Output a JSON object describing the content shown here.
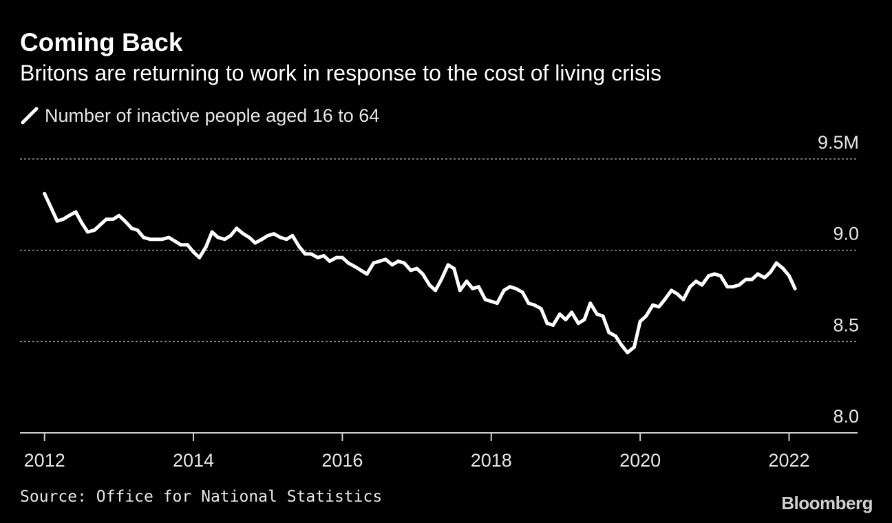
{
  "chart_data": {
    "type": "line",
    "title": "Coming Back",
    "subtitle": "Britons are returning to work in response to the cost of living crisis",
    "legend": [
      "Number of inactive people aged 16 to 64"
    ],
    "ylim": [
      8.0,
      9.5
    ],
    "y_unit": "M",
    "yticks": [
      {
        "value": 9.5,
        "label": "9.5M"
      },
      {
        "value": 9.0,
        "label": "9.0"
      },
      {
        "value": 8.5,
        "label": "8.5"
      },
      {
        "value": 8.0,
        "label": "8.0"
      }
    ],
    "xlim": [
      2011.67,
      2022.92
    ],
    "xticks": [
      {
        "value": 2012,
        "label": "2012"
      },
      {
        "value": 2014,
        "label": "2014"
      },
      {
        "value": 2016,
        "label": "2016"
      },
      {
        "value": 2018,
        "label": "2018"
      },
      {
        "value": 2020,
        "label": "2020"
      },
      {
        "value": 2022,
        "label": "2022"
      }
    ],
    "gridlines": [
      9.5,
      9.0,
      8.5
    ],
    "series": [
      {
        "name": "Number of inactive people aged 16 to 64",
        "color": "#ffffff",
        "points": [
          [
            2012.0,
            9.31
          ],
          [
            2012.08,
            9.24
          ],
          [
            2012.17,
            9.16
          ],
          [
            2012.25,
            9.17
          ],
          [
            2012.33,
            9.19
          ],
          [
            2012.42,
            9.21
          ],
          [
            2012.5,
            9.15
          ],
          [
            2012.58,
            9.1
          ],
          [
            2012.67,
            9.11
          ],
          [
            2012.75,
            9.14
          ],
          [
            2012.83,
            9.17
          ],
          [
            2012.92,
            9.17
          ],
          [
            2013.0,
            9.19
          ],
          [
            2013.08,
            9.16
          ],
          [
            2013.17,
            9.12
          ],
          [
            2013.25,
            9.11
          ],
          [
            2013.33,
            9.07
          ],
          [
            2013.42,
            9.06
          ],
          [
            2013.5,
            9.06
          ],
          [
            2013.58,
            9.06
          ],
          [
            2013.67,
            9.07
          ],
          [
            2013.75,
            9.05
          ],
          [
            2013.83,
            9.03
          ],
          [
            2013.92,
            9.03
          ],
          [
            2014.0,
            8.99
          ],
          [
            2014.08,
            8.96
          ],
          [
            2014.17,
            9.02
          ],
          [
            2014.25,
            9.1
          ],
          [
            2014.33,
            9.07
          ],
          [
            2014.42,
            9.06
          ],
          [
            2014.5,
            9.08
          ],
          [
            2014.58,
            9.12
          ],
          [
            2014.67,
            9.09
          ],
          [
            2014.75,
            9.07
          ],
          [
            2014.83,
            9.04
          ],
          [
            2014.92,
            9.06
          ],
          [
            2015.0,
            9.08
          ],
          [
            2015.08,
            9.09
          ],
          [
            2015.17,
            9.07
          ],
          [
            2015.25,
            9.06
          ],
          [
            2015.33,
            9.08
          ],
          [
            2015.42,
            9.02
          ],
          [
            2015.5,
            8.98
          ],
          [
            2015.58,
            8.98
          ],
          [
            2015.67,
            8.96
          ],
          [
            2015.75,
            8.97
          ],
          [
            2015.83,
            8.94
          ],
          [
            2015.92,
            8.96
          ],
          [
            2016.0,
            8.96
          ],
          [
            2016.08,
            8.93
          ],
          [
            2016.17,
            8.91
          ],
          [
            2016.25,
            8.89
          ],
          [
            2016.33,
            8.87
          ],
          [
            2016.42,
            8.93
          ],
          [
            2016.5,
            8.94
          ],
          [
            2016.58,
            8.95
          ],
          [
            2016.67,
            8.92
          ],
          [
            2016.75,
            8.94
          ],
          [
            2016.83,
            8.93
          ],
          [
            2016.92,
            8.89
          ],
          [
            2017.0,
            8.9
          ],
          [
            2017.08,
            8.87
          ],
          [
            2017.17,
            8.81
          ],
          [
            2017.25,
            8.78
          ],
          [
            2017.33,
            8.84
          ],
          [
            2017.42,
            8.92
          ],
          [
            2017.5,
            8.9
          ],
          [
            2017.58,
            8.78
          ],
          [
            2017.67,
            8.83
          ],
          [
            2017.75,
            8.79
          ],
          [
            2017.83,
            8.8
          ],
          [
            2017.92,
            8.73
          ],
          [
            2018.0,
            8.72
          ],
          [
            2018.08,
            8.71
          ],
          [
            2018.17,
            8.78
          ],
          [
            2018.25,
            8.8
          ],
          [
            2018.33,
            8.79
          ],
          [
            2018.42,
            8.77
          ],
          [
            2018.5,
            8.71
          ],
          [
            2018.58,
            8.7
          ],
          [
            2018.67,
            8.68
          ],
          [
            2018.75,
            8.6
          ],
          [
            2018.83,
            8.59
          ],
          [
            2018.92,
            8.65
          ],
          [
            2019.0,
            8.62
          ],
          [
            2019.08,
            8.66
          ],
          [
            2019.17,
            8.6
          ],
          [
            2019.25,
            8.62
          ],
          [
            2019.33,
            8.71
          ],
          [
            2019.42,
            8.65
          ],
          [
            2019.5,
            8.64
          ],
          [
            2019.58,
            8.55
          ],
          [
            2019.67,
            8.53
          ],
          [
            2019.75,
            8.48
          ],
          [
            2019.83,
            8.44
          ],
          [
            2019.92,
            8.47
          ],
          [
            2020.0,
            8.61
          ],
          [
            2020.08,
            8.64
          ],
          [
            2020.17,
            8.7
          ],
          [
            2020.25,
            8.69
          ],
          [
            2020.33,
            8.73
          ],
          [
            2020.42,
            8.78
          ],
          [
            2020.5,
            8.76
          ],
          [
            2020.58,
            8.73
          ],
          [
            2020.67,
            8.8
          ],
          [
            2020.75,
            8.83
          ],
          [
            2020.83,
            8.81
          ],
          [
            2020.92,
            8.86
          ],
          [
            2021.0,
            8.87
          ],
          [
            2021.08,
            8.86
          ],
          [
            2021.17,
            8.8
          ],
          [
            2021.25,
            8.8
          ],
          [
            2021.33,
            8.81
          ],
          [
            2021.42,
            8.84
          ],
          [
            2021.5,
            8.84
          ],
          [
            2021.58,
            8.87
          ],
          [
            2021.67,
            8.85
          ],
          [
            2021.75,
            8.88
          ],
          [
            2021.83,
            8.93
          ],
          [
            2021.92,
            8.9
          ],
          [
            2022.0,
            8.86
          ],
          [
            2022.08,
            8.79
          ]
        ]
      }
    ],
    "source": "Source: Office for National Statistics"
  },
  "brand": {
    "name": "Bloomberg"
  },
  "colors": {
    "background": "#000000",
    "line": "#ffffff",
    "gridline": "#9a9a9a",
    "axis": "#cfcfcf",
    "text": "#e6e6e6"
  }
}
